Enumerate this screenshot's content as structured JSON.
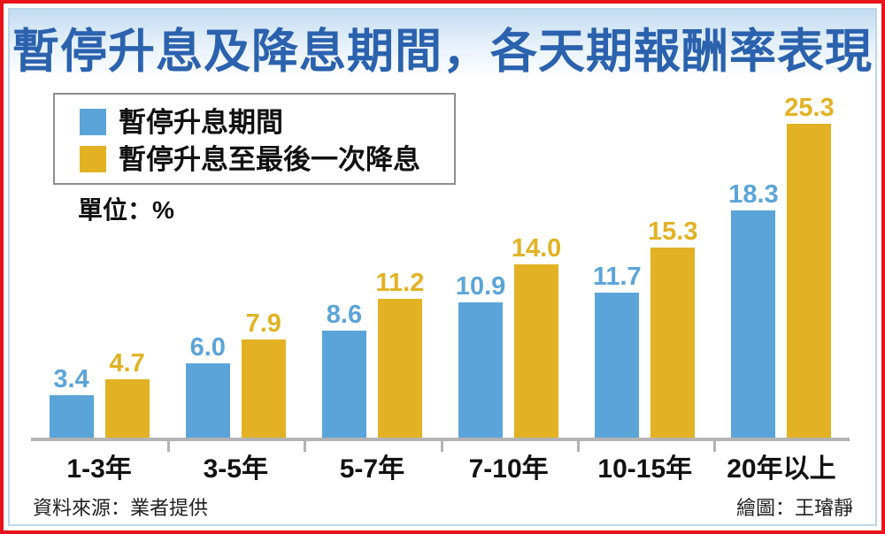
{
  "title": {
    "text": "暫停升息及降息期間，各天期報酬率表現"
  },
  "legend": {
    "items": [
      {
        "label": "暫停升息期間",
        "color": "#5ba4d9"
      },
      {
        "label": "暫停升息至最後一次降息",
        "color": "#e2b224"
      }
    ]
  },
  "unit_label": "單位：%",
  "chart_data": {
    "type": "bar",
    "categories": [
      "1-3年",
      "3-5年",
      "5-7年",
      "7-10年",
      "10-15年",
      "20年以上"
    ],
    "series": [
      {
        "name": "暫停升息期間",
        "color": "#5ba4d9",
        "values": [
          3.4,
          6.0,
          8.6,
          10.9,
          11.7,
          18.3
        ],
        "labels": [
          "3.4",
          "6.0",
          "8.6",
          "10.9",
          "11.7",
          "18.3"
        ]
      },
      {
        "name": "暫停升息至最後一次降息",
        "color": "#e2b224",
        "values": [
          4.7,
          7.9,
          11.2,
          14.0,
          15.3,
          25.3
        ],
        "labels": [
          "4.7",
          "7.9",
          "11.2",
          "14.0",
          "15.3",
          "25.3"
        ]
      }
    ],
    "title": "暫停升息及降息期間，各天期報酬率表現",
    "xlabel": "",
    "ylabel": "%",
    "ylim": [
      0,
      25.3
    ],
    "grid": false,
    "legend_position": "top-left",
    "value_labels": true
  },
  "colors": {
    "title_blue": "#2b62ae",
    "axis_gray": "#b3b3b3",
    "border_red": "#e8131b",
    "frame_blue": "#bcd7ea"
  },
  "footer": {
    "source": "資料來源：業者提供",
    "credit": "繪圖：王璿靜"
  }
}
